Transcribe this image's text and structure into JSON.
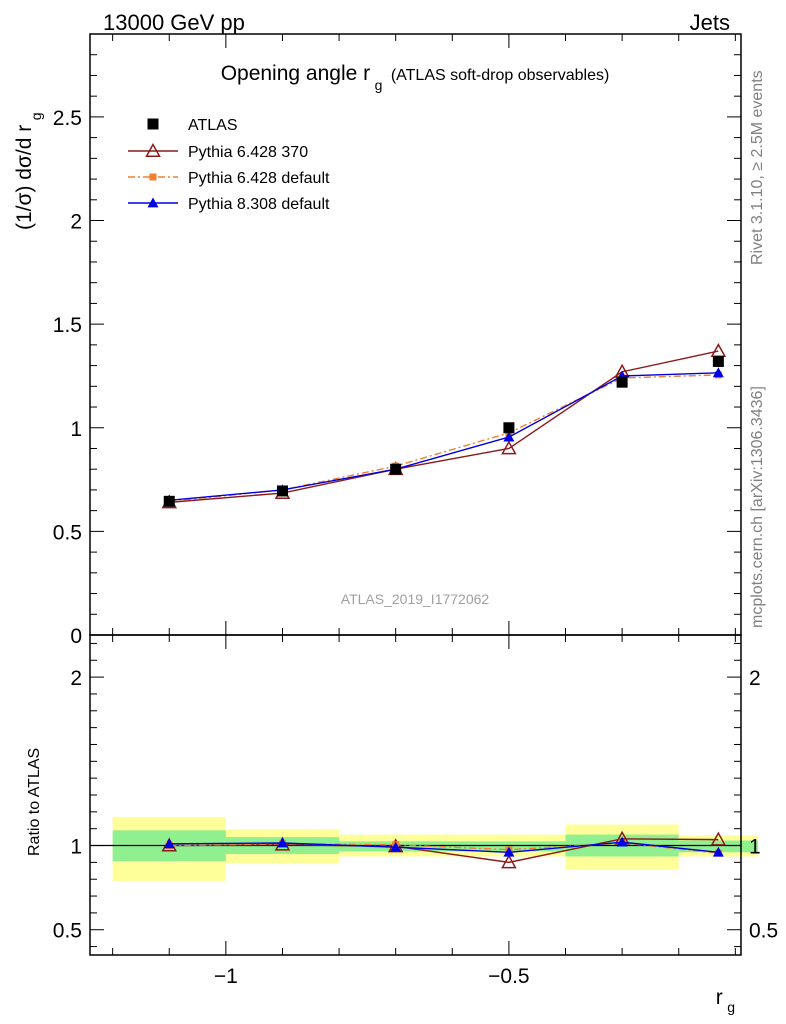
{
  "header": {
    "left": "13000 GeV pp",
    "right": "Jets"
  },
  "side_labels": {
    "rivet": "Rivet 3.1.10, ≥ 2.5M events",
    "mcplots": "mcplots.cern.ch [arXiv:1306.3436]"
  },
  "chart_data": [
    {
      "type": "line",
      "title": "Opening angle r",
      "title_sub": "g",
      "title_suffix": "(ATLAS soft-drop observables)",
      "ylabel": "(1/σ) dσ/d r",
      "ylabel_sub": "g",
      "watermark": "ATLAS_2019_I1772062",
      "xlim": [
        -1.24,
        -0.09
      ],
      "ylim": [
        0,
        2.9
      ],
      "yticks": [
        0,
        0.5,
        1,
        1.5,
        2,
        2.5
      ],
      "ytick_labels": [
        "0",
        "0.5",
        "1",
        "1.5",
        "2",
        "2.5"
      ],
      "x": [
        -1.1,
        -0.9,
        -0.7,
        -0.5,
        -0.3,
        -0.13
      ],
      "series": [
        {
          "name": "ATLAS",
          "marker": "square",
          "color": "#000000",
          "values": [
            0.645,
            0.695,
            0.8,
            1.0,
            1.22,
            1.32
          ]
        },
        {
          "name": "Pythia 6.428 370",
          "marker": "triangle-open",
          "color": "#8b1a1a",
          "values": [
            0.64,
            0.685,
            0.8,
            0.9,
            1.27,
            1.37
          ]
        },
        {
          "name": "Pythia 6.428 default",
          "marker": "square-small",
          "color": "#f08030",
          "dash": "dashdot",
          "values": [
            0.645,
            0.7,
            0.815,
            0.975,
            1.24,
            1.255
          ]
        },
        {
          "name": "Pythia 8.308 default",
          "marker": "triangle",
          "color": "#0000e0",
          "values": [
            0.65,
            0.7,
            0.8,
            0.955,
            1.25,
            1.265
          ]
        }
      ],
      "grid": false,
      "legend_position": "top-left"
    },
    {
      "type": "line",
      "ylabel": "Ratio to ATLAS",
      "xlabel": "r",
      "xlabel_sub": "g",
      "xlim": [
        -1.24,
        -0.09
      ],
      "ylim": [
        0.35,
        2.25
      ],
      "xticks": [
        -1,
        -0.5
      ],
      "xtick_labels": [
        "−1",
        "−0.5"
      ],
      "yticks": [
        0.5,
        1,
        2
      ],
      "ytick_labels": [
        "0.5",
        "1",
        "2"
      ],
      "bins": [
        {
          "lo": -1.2,
          "hi": -1.0,
          "green": [
            0.907,
            1.09
          ],
          "yellow": [
            0.79,
            1.17
          ]
        },
        {
          "lo": -1.0,
          "hi": -0.8,
          "green": [
            0.95,
            1.05
          ],
          "yellow": [
            0.895,
            1.095
          ]
        },
        {
          "lo": -0.8,
          "hi": -0.6,
          "green": [
            0.965,
            1.025
          ],
          "yellow": [
            0.935,
            1.065
          ]
        },
        {
          "lo": -0.6,
          "hi": -0.4,
          "green": [
            0.965,
            1.025
          ],
          "yellow": [
            0.935,
            1.065
          ]
        },
        {
          "lo": -0.4,
          "hi": -0.2,
          "green": [
            0.935,
            1.065
          ],
          "yellow": [
            0.855,
            1.125
          ]
        },
        {
          "lo": -0.2,
          "hi": -0.06,
          "green": [
            0.96,
            1.03
          ],
          "yellow": [
            0.935,
            1.06
          ]
        }
      ],
      "x": [
        -1.1,
        -0.9,
        -0.7,
        -0.5,
        -0.3,
        -0.13
      ],
      "series": [
        {
          "name": "Pythia 6.428 370",
          "color": "#8b1a1a",
          "marker": "triangle-open",
          "values": [
            1.0,
            1.005,
            0.995,
            0.9,
            1.04,
            1.035
          ]
        },
        {
          "name": "Pythia 6.428 default",
          "color": "#f08030",
          "marker": "square-small",
          "dash": "dashdot",
          "values": [
            1.0,
            1.01,
            1.005,
            0.975,
            1.015,
            0.955
          ]
        },
        {
          "name": "Pythia 8.308 default",
          "color": "#0000e0",
          "marker": "triangle",
          "values": [
            1.01,
            1.015,
            0.99,
            0.96,
            1.02,
            0.96
          ]
        }
      ],
      "colors": {
        "band_green": "#90f090",
        "band_yellow": "#ffff99"
      }
    }
  ]
}
